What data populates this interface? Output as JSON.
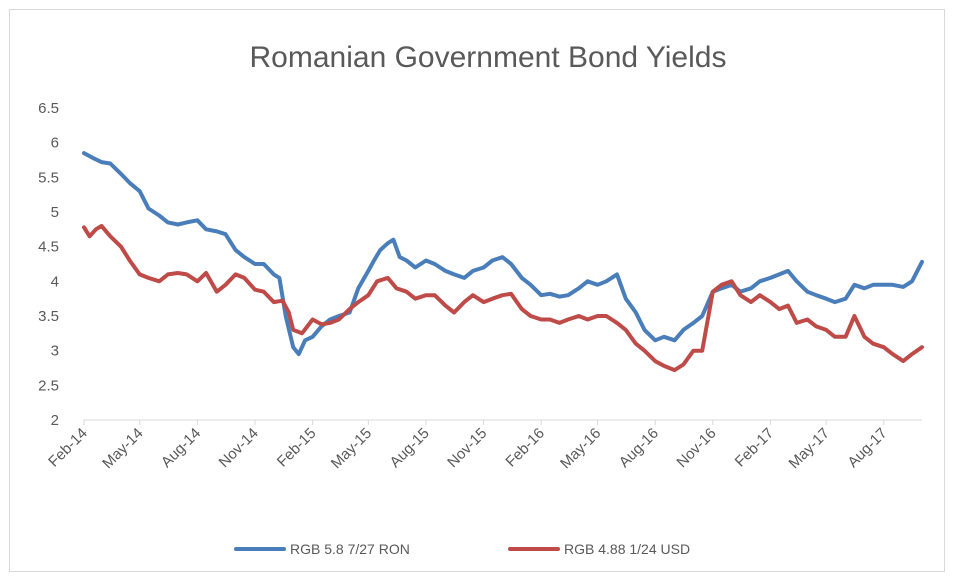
{
  "chart_data": {
    "type": "line",
    "title": "Romanian Government Bond Yields",
    "xlabel": "",
    "ylabel": "",
    "x_ticks": [
      "Feb-14",
      "May-14",
      "Aug-14",
      "Nov-14",
      "Feb-15",
      "May-15",
      "Aug-15",
      "Nov-15",
      "Feb-16",
      "May-16",
      "Aug-16",
      "Nov-16",
      "Feb-17",
      "May-17",
      "Aug-17"
    ],
    "x_range": [
      "2014-02",
      "2017-10"
    ],
    "ylim": [
      2,
      6.5
    ],
    "y_ticks": [
      2,
      2.5,
      3,
      3.5,
      4,
      4.5,
      5,
      5.5,
      6,
      6.5
    ],
    "grid": false,
    "legend_position": "bottom",
    "series": [
      {
        "name": "RGB 5.8 7/27 RON",
        "color": "#4a7ebb",
        "points": [
          [
            "2014-02-01",
            5.85
          ],
          [
            "2014-02-15",
            5.78
          ],
          [
            "2014-03-01",
            5.72
          ],
          [
            "2014-03-15",
            5.7
          ],
          [
            "2014-04-01",
            5.55
          ],
          [
            "2014-04-15",
            5.42
          ],
          [
            "2014-05-01",
            5.3
          ],
          [
            "2014-05-15",
            5.05
          ],
          [
            "2014-06-01",
            4.95
          ],
          [
            "2014-06-15",
            4.85
          ],
          [
            "2014-07-01",
            4.82
          ],
          [
            "2014-07-15",
            4.85
          ],
          [
            "2014-08-01",
            4.88
          ],
          [
            "2014-08-15",
            4.75
          ],
          [
            "2014-09-01",
            4.72
          ],
          [
            "2014-09-15",
            4.68
          ],
          [
            "2014-10-01",
            4.45
          ],
          [
            "2014-10-15",
            4.35
          ],
          [
            "2014-11-01",
            4.25
          ],
          [
            "2014-11-15",
            4.25
          ],
          [
            "2014-12-01",
            4.1
          ],
          [
            "2014-12-10",
            4.05
          ],
          [
            "2014-12-20",
            3.5
          ],
          [
            "2015-01-01",
            3.05
          ],
          [
            "2015-01-10",
            2.95
          ],
          [
            "2015-01-20",
            3.15
          ],
          [
            "2015-02-01",
            3.2
          ],
          [
            "2015-02-15",
            3.35
          ],
          [
            "2015-03-01",
            3.45
          ],
          [
            "2015-03-15",
            3.5
          ],
          [
            "2015-04-01",
            3.55
          ],
          [
            "2015-04-15",
            3.9
          ],
          [
            "2015-05-01",
            4.15
          ],
          [
            "2015-05-10",
            4.3
          ],
          [
            "2015-05-20",
            4.45
          ],
          [
            "2015-06-01",
            4.55
          ],
          [
            "2015-06-10",
            4.6
          ],
          [
            "2015-06-20",
            4.35
          ],
          [
            "2015-07-01",
            4.3
          ],
          [
            "2015-07-15",
            4.2
          ],
          [
            "2015-08-01",
            4.3
          ],
          [
            "2015-08-15",
            4.25
          ],
          [
            "2015-09-01",
            4.15
          ],
          [
            "2015-09-15",
            4.1
          ],
          [
            "2015-10-01",
            4.05
          ],
          [
            "2015-10-15",
            4.15
          ],
          [
            "2015-11-01",
            4.2
          ],
          [
            "2015-11-15",
            4.3
          ],
          [
            "2015-12-01",
            4.35
          ],
          [
            "2015-12-15",
            4.25
          ],
          [
            "2016-01-01",
            4.05
          ],
          [
            "2016-01-15",
            3.95
          ],
          [
            "2016-02-01",
            3.8
          ],
          [
            "2016-02-15",
            3.82
          ],
          [
            "2016-03-01",
            3.78
          ],
          [
            "2016-03-15",
            3.8
          ],
          [
            "2016-04-01",
            3.9
          ],
          [
            "2016-04-15",
            4.0
          ],
          [
            "2016-05-01",
            3.95
          ],
          [
            "2016-05-15",
            4.0
          ],
          [
            "2016-06-01",
            4.1
          ],
          [
            "2016-06-15",
            3.75
          ],
          [
            "2016-07-01",
            3.55
          ],
          [
            "2016-07-15",
            3.3
          ],
          [
            "2016-08-01",
            3.15
          ],
          [
            "2016-08-15",
            3.2
          ],
          [
            "2016-09-01",
            3.15
          ],
          [
            "2016-09-15",
            3.3
          ],
          [
            "2016-10-01",
            3.4
          ],
          [
            "2016-10-15",
            3.5
          ],
          [
            "2016-11-01",
            3.85
          ],
          [
            "2016-11-15",
            3.9
          ],
          [
            "2016-12-01",
            3.95
          ],
          [
            "2016-12-15",
            3.85
          ],
          [
            "2017-01-01",
            3.9
          ],
          [
            "2017-01-15",
            4.0
          ],
          [
            "2017-02-01",
            4.05
          ],
          [
            "2017-02-15",
            4.1
          ],
          [
            "2017-03-01",
            4.15
          ],
          [
            "2017-03-15",
            4.0
          ],
          [
            "2017-04-01",
            3.85
          ],
          [
            "2017-04-15",
            3.8
          ],
          [
            "2017-05-01",
            3.75
          ],
          [
            "2017-05-15",
            3.7
          ],
          [
            "2017-06-01",
            3.75
          ],
          [
            "2017-06-15",
            3.95
          ],
          [
            "2017-07-01",
            3.9
          ],
          [
            "2017-07-15",
            3.95
          ],
          [
            "2017-08-01",
            3.95
          ],
          [
            "2017-08-15",
            3.95
          ],
          [
            "2017-09-01",
            3.92
          ],
          [
            "2017-09-15",
            4.0
          ],
          [
            "2017-10-01",
            4.28
          ]
        ]
      },
      {
        "name": "RGB 4.88 1/24 USD",
        "color": "#be4b48",
        "points": [
          [
            "2014-02-01",
            4.78
          ],
          [
            "2014-02-10",
            4.65
          ],
          [
            "2014-02-20",
            4.75
          ],
          [
            "2014-03-01",
            4.8
          ],
          [
            "2014-03-15",
            4.65
          ],
          [
            "2014-04-01",
            4.5
          ],
          [
            "2014-04-15",
            4.3
          ],
          [
            "2014-05-01",
            4.1
          ],
          [
            "2014-05-15",
            4.05
          ],
          [
            "2014-06-01",
            4.0
          ],
          [
            "2014-06-15",
            4.1
          ],
          [
            "2014-07-01",
            4.12
          ],
          [
            "2014-07-15",
            4.1
          ],
          [
            "2014-08-01",
            4.0
          ],
          [
            "2014-08-15",
            4.12
          ],
          [
            "2014-09-01",
            3.85
          ],
          [
            "2014-09-15",
            3.95
          ],
          [
            "2014-10-01",
            4.1
          ],
          [
            "2014-10-15",
            4.05
          ],
          [
            "2014-11-01",
            3.88
          ],
          [
            "2014-11-15",
            3.85
          ],
          [
            "2014-12-01",
            3.7
          ],
          [
            "2014-12-15",
            3.72
          ],
          [
            "2014-12-25",
            3.55
          ],
          [
            "2015-01-01",
            3.3
          ],
          [
            "2015-01-15",
            3.25
          ],
          [
            "2015-02-01",
            3.45
          ],
          [
            "2015-02-15",
            3.38
          ],
          [
            "2015-03-01",
            3.4
          ],
          [
            "2015-03-15",
            3.45
          ],
          [
            "2015-04-01",
            3.6
          ],
          [
            "2015-04-15",
            3.7
          ],
          [
            "2015-05-01",
            3.8
          ],
          [
            "2015-05-15",
            4.0
          ],
          [
            "2015-06-01",
            4.05
          ],
          [
            "2015-06-15",
            3.9
          ],
          [
            "2015-07-01",
            3.85
          ],
          [
            "2015-07-15",
            3.75
          ],
          [
            "2015-08-01",
            3.8
          ],
          [
            "2015-08-15",
            3.8
          ],
          [
            "2015-09-01",
            3.65
          ],
          [
            "2015-09-15",
            3.55
          ],
          [
            "2015-10-01",
            3.7
          ],
          [
            "2015-10-15",
            3.8
          ],
          [
            "2015-11-01",
            3.7
          ],
          [
            "2015-11-15",
            3.75
          ],
          [
            "2015-12-01",
            3.8
          ],
          [
            "2015-12-15",
            3.82
          ],
          [
            "2016-01-01",
            3.6
          ],
          [
            "2016-01-15",
            3.5
          ],
          [
            "2016-02-01",
            3.45
          ],
          [
            "2016-02-15",
            3.45
          ],
          [
            "2016-03-01",
            3.4
          ],
          [
            "2016-03-15",
            3.45
          ],
          [
            "2016-04-01",
            3.5
          ],
          [
            "2016-04-15",
            3.45
          ],
          [
            "2016-05-01",
            3.5
          ],
          [
            "2016-05-15",
            3.5
          ],
          [
            "2016-06-01",
            3.4
          ],
          [
            "2016-06-15",
            3.3
          ],
          [
            "2016-07-01",
            3.1
          ],
          [
            "2016-07-15",
            3.0
          ],
          [
            "2016-08-01",
            2.85
          ],
          [
            "2016-08-15",
            2.78
          ],
          [
            "2016-09-01",
            2.72
          ],
          [
            "2016-09-15",
            2.8
          ],
          [
            "2016-10-01",
            3.0
          ],
          [
            "2016-10-15",
            3.0
          ],
          [
            "2016-11-01",
            3.85
          ],
          [
            "2016-11-15",
            3.95
          ],
          [
            "2016-12-01",
            4.0
          ],
          [
            "2016-12-15",
            3.8
          ],
          [
            "2017-01-01",
            3.7
          ],
          [
            "2017-01-15",
            3.8
          ],
          [
            "2017-02-01",
            3.7
          ],
          [
            "2017-02-15",
            3.6
          ],
          [
            "2017-03-01",
            3.65
          ],
          [
            "2017-03-15",
            3.4
          ],
          [
            "2017-04-01",
            3.45
          ],
          [
            "2017-04-15",
            3.35
          ],
          [
            "2017-05-01",
            3.3
          ],
          [
            "2017-05-15",
            3.2
          ],
          [
            "2017-06-01",
            3.2
          ],
          [
            "2017-06-15",
            3.5
          ],
          [
            "2017-07-01",
            3.2
          ],
          [
            "2017-07-15",
            3.1
          ],
          [
            "2017-08-01",
            3.05
          ],
          [
            "2017-08-15",
            2.95
          ],
          [
            "2017-09-01",
            2.85
          ],
          [
            "2017-09-15",
            2.95
          ],
          [
            "2017-10-01",
            3.05
          ]
        ]
      }
    ]
  }
}
